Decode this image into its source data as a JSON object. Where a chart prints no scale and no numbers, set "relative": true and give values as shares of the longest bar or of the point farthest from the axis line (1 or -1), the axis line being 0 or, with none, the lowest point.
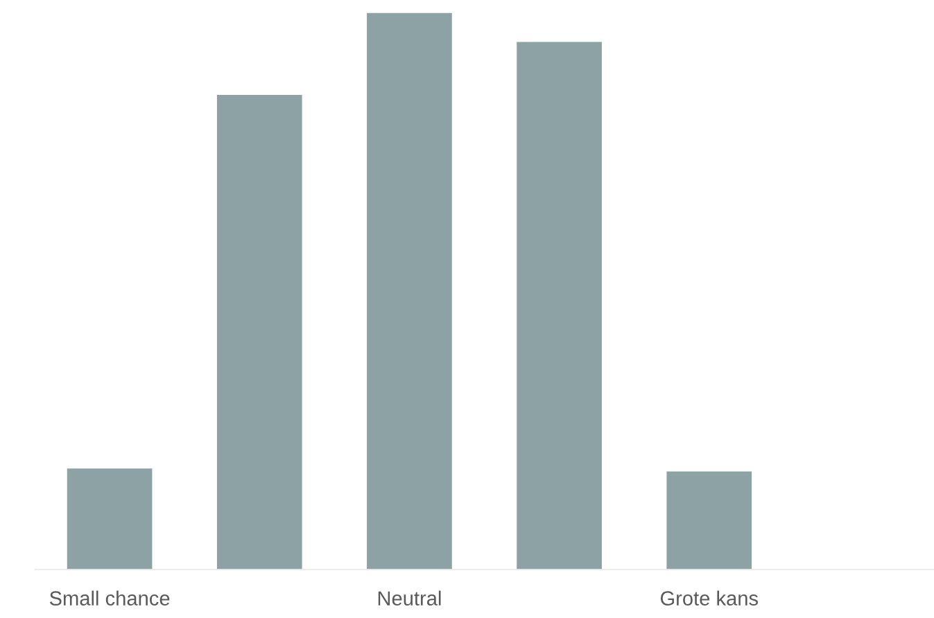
{
  "chart_data": {
    "type": "bar",
    "relative": true,
    "categories": [
      "Small chance",
      null,
      "Neutral",
      null,
      "Grote kans",
      null
    ],
    "values": [
      0.182,
      0.853,
      1,
      0.948,
      0.177,
      null
    ],
    "color": "#8ca2a5",
    "grid": false,
    "legend": false
  }
}
